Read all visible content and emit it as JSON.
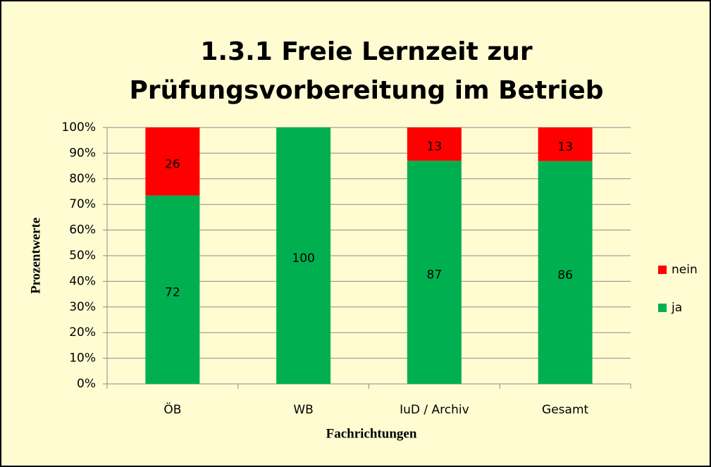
{
  "chart_data": {
    "type": "bar",
    "stacking": "percent",
    "title": [
      "1.3.1 Freie Lernzeit zur",
      "Prüfungsvorbereitung im Betrieb"
    ],
    "x_label": "Fachrichtungen",
    "y_label": "Prozentwerte",
    "categories": [
      "ÖB",
      "WB",
      "IuD / Archiv",
      "Gesamt"
    ],
    "series": [
      {
        "name": "ja",
        "color": "#00b050",
        "values": [
          72,
          100,
          87,
          86
        ]
      },
      {
        "name": "nein",
        "color": "#ff0000",
        "values": [
          26,
          null,
          13,
          13
        ]
      }
    ],
    "ylim": [
      0,
      100
    ],
    "yticks": [
      {
        "value": 0,
        "label": "0%"
      },
      {
        "value": 10,
        "label": "10%"
      },
      {
        "value": 20,
        "label": "20%"
      },
      {
        "value": 30,
        "label": "30%"
      },
      {
        "value": 40,
        "label": "40%"
      },
      {
        "value": 50,
        "label": "50%"
      },
      {
        "value": 60,
        "label": "60%"
      },
      {
        "value": 70,
        "label": "70%"
      },
      {
        "value": 80,
        "label": "80%"
      },
      {
        "value": 90,
        "label": "90%"
      },
      {
        "value": 100,
        "label": "100%"
      }
    ],
    "grid": true,
    "legend": "right"
  }
}
